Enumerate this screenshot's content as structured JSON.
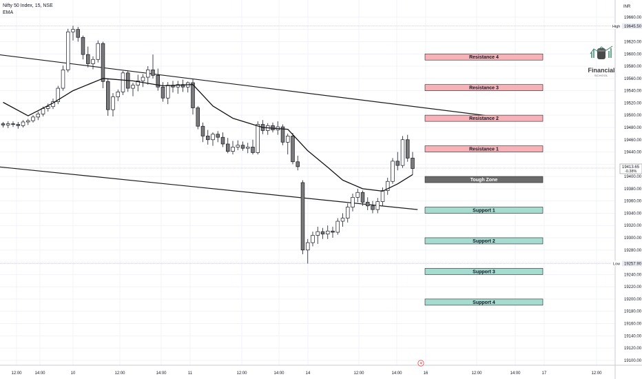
{
  "header": {
    "symbol_line": "Nifty 50 Index, 15, NSE",
    "indicator": "EMA"
  },
  "currency": "INR",
  "brand": {
    "name": "Financial",
    "sub": "SCHOOL"
  },
  "price_axis": {
    "ticks": [
      "19660.00",
      "19620.00",
      "19600.00",
      "19580.00",
      "19560.00",
      "19540.00",
      "19520.00",
      "19500.00",
      "19480.00",
      "19460.00",
      "19440.00",
      "19400.00",
      "19380.00",
      "19360.00",
      "19340.00",
      "19320.00",
      "19300.00",
      "19280.00",
      "19240.00",
      "19220.00",
      "19200.00",
      "19180.00",
      "19160.00",
      "19140.00",
      "19120.00",
      "19100.00"
    ],
    "high_label": "High",
    "high_value": "19645.50",
    "low_label": "Low",
    "low_value": "19257.90",
    "last_value": "19413.65",
    "last_change": "-0.38%"
  },
  "time_axis": {
    "ticks": [
      "12:00",
      "14:00",
      "10",
      "12:00",
      "14:00",
      "11",
      "12:00",
      "14:00",
      "14",
      "12:00",
      "14:00",
      "16",
      "12:00",
      "14:00",
      "17",
      "12:00"
    ]
  },
  "levels": [
    {
      "label": "Resistance 4",
      "price": 19595,
      "kind": "resistance"
    },
    {
      "label": "Resistance 3",
      "price": 19545,
      "kind": "resistance"
    },
    {
      "label": "Resistance 2",
      "price": 19495,
      "kind": "resistance"
    },
    {
      "label": "Resistance 1",
      "price": 19445,
      "kind": "resistance"
    },
    {
      "label": "Tough Zone",
      "price": 19395,
      "kind": "zone"
    },
    {
      "label": "Support 1",
      "price": 19345,
      "kind": "support"
    },
    {
      "label": "Support 2",
      "price": 19295,
      "kind": "support"
    },
    {
      "label": "Support 3",
      "price": 19245,
      "kind": "support"
    },
    {
      "label": "Support 4",
      "price": 19195,
      "kind": "support"
    }
  ],
  "colors": {
    "resistance_fill": "#f7b2b8",
    "support_fill": "#a6dcd0",
    "zone_fill": "#6b6b6b",
    "candle_up": "#ffffff",
    "candle_down": "#7a7a7a",
    "outline": "#131722"
  },
  "chart_data": {
    "type": "candlestick",
    "title": "Nifty 50 Index, 15, NSE",
    "ylim": [
      19092,
      19688
    ],
    "ohlc": [
      [
        19486,
        19489,
        19480,
        19484
      ],
      [
        19484,
        19490,
        19479,
        19486
      ],
      [
        19486,
        19490,
        19481,
        19485
      ],
      [
        19485,
        19489,
        19478,
        19483
      ],
      [
        19483,
        19492,
        19480,
        19489
      ],
      [
        19489,
        19494,
        19484,
        19491
      ],
      [
        19491,
        19500,
        19488,
        19497
      ],
      [
        19497,
        19506,
        19492,
        19502
      ],
      [
        19502,
        19514,
        19498,
        19511
      ],
      [
        19511,
        19519,
        19506,
        19514
      ],
      [
        19514,
        19527,
        19510,
        19522
      ],
      [
        19522,
        19548,
        19518,
        19544
      ],
      [
        19544,
        19581,
        19540,
        19574
      ],
      [
        19574,
        19641,
        19570,
        19636
      ],
      [
        19636,
        19646,
        19622,
        19640
      ],
      [
        19640,
        19644,
        19620,
        19627
      ],
      [
        19627,
        19630,
        19591,
        19599
      ],
      [
        19599,
        19612,
        19578,
        19584
      ],
      [
        19584,
        19596,
        19575,
        19591
      ],
      [
        19591,
        19622,
        19586,
        19617
      ],
      [
        19617,
        19620,
        19544,
        19555
      ],
      [
        19555,
        19560,
        19499,
        19509
      ],
      [
        19509,
        19536,
        19498,
        19530
      ],
      [
        19530,
        19542,
        19523,
        19538
      ],
      [
        19538,
        19572,
        19533,
        19569
      ],
      [
        19569,
        19573,
        19538,
        19544
      ],
      [
        19544,
        19553,
        19531,
        19549
      ],
      [
        19549,
        19566,
        19539,
        19556
      ],
      [
        19556,
        19567,
        19546,
        19562
      ],
      [
        19562,
        19580,
        19550,
        19574
      ],
      [
        19574,
        19599,
        19560,
        19565
      ],
      [
        19565,
        19576,
        19540,
        19546
      ],
      [
        19546,
        19554,
        19522,
        19528
      ],
      [
        19528,
        19554,
        19518,
        19549
      ],
      [
        19549,
        19556,
        19537,
        19546
      ],
      [
        19546,
        19556,
        19535,
        19550
      ],
      [
        19550,
        19558,
        19538,
        19546
      ],
      [
        19546,
        19555,
        19537,
        19553
      ],
      [
        19553,
        19559,
        19501,
        19512
      ],
      [
        19512,
        19515,
        19477,
        19482
      ],
      [
        19482,
        19488,
        19456,
        19466
      ],
      [
        19466,
        19476,
        19452,
        19460
      ],
      [
        19460,
        19472,
        19450,
        19469
      ],
      [
        19469,
        19474,
        19456,
        19464
      ],
      [
        19464,
        19472,
        19448,
        19453
      ],
      [
        19453,
        19463,
        19438,
        19441
      ],
      [
        19441,
        19458,
        19436,
        19448
      ],
      [
        19448,
        19459,
        19443,
        19451
      ],
      [
        19451,
        19457,
        19442,
        19446
      ],
      [
        19446,
        19455,
        19438,
        19448
      ],
      [
        19448,
        19460,
        19436,
        19439
      ],
      [
        19439,
        19490,
        19436,
        19485
      ],
      [
        19485,
        19492,
        19469,
        19475
      ],
      [
        19475,
        19487,
        19468,
        19483
      ],
      [
        19483,
        19488,
        19472,
        19476
      ],
      [
        19476,
        19490,
        19468,
        19481
      ],
      [
        19481,
        19485,
        19451,
        19456
      ],
      [
        19456,
        19470,
        19436,
        19466
      ],
      [
        19466,
        19471,
        19420,
        19424
      ],
      [
        19424,
        19434,
        19410,
        19416
      ],
      [
        19390,
        19394,
        19273,
        19280
      ],
      [
        19280,
        19298,
        19258,
        19292
      ],
      [
        19292,
        19310,
        19286,
        19304
      ],
      [
        19304,
        19318,
        19290,
        19310
      ],
      [
        19310,
        19316,
        19298,
        19306
      ],
      [
        19306,
        19320,
        19298,
        19311
      ],
      [
        19311,
        19318,
        19300,
        19309
      ],
      [
        19309,
        19332,
        19305,
        19327
      ],
      [
        19327,
        19340,
        19318,
        19332
      ],
      [
        19332,
        19356,
        19325,
        19350
      ],
      [
        19350,
        19372,
        19343,
        19366
      ],
      [
        19366,
        19380,
        19358,
        19374
      ],
      [
        19374,
        19377,
        19352,
        19358
      ],
      [
        19358,
        19366,
        19345,
        19352
      ],
      [
        19352,
        19360,
        19340,
        19346
      ],
      [
        19346,
        19365,
        19340,
        19359
      ],
      [
        19359,
        19382,
        19352,
        19377
      ],
      [
        19377,
        19398,
        19370,
        19392
      ],
      [
        19392,
        19430,
        19388,
        19425
      ],
      [
        19425,
        19440,
        19410,
        19418
      ],
      [
        19418,
        19466,
        19414,
        19460
      ],
      [
        19460,
        19468,
        19424,
        19430
      ],
      [
        19430,
        19440,
        19403,
        19413
      ]
    ],
    "ema": [
      [
        0,
        19521
      ],
      [
        5,
        19499
      ],
      [
        10,
        19520
      ],
      [
        14,
        19540
      ],
      [
        20,
        19560
      ],
      [
        26,
        19556
      ],
      [
        32,
        19548
      ],
      [
        38,
        19550
      ],
      [
        42,
        19515
      ],
      [
        46,
        19495
      ],
      [
        52,
        19480
      ],
      [
        57,
        19477
      ],
      [
        61,
        19442
      ],
      [
        65,
        19415
      ],
      [
        68,
        19394
      ],
      [
        72,
        19380
      ],
      [
        76,
        19376
      ],
      [
        79,
        19388
      ],
      [
        82,
        19403
      ]
    ],
    "trendlines": [
      {
        "from": [
          -6,
          19604
        ],
        "to": [
          102,
          19494
        ]
      },
      {
        "from": [
          -6,
          19420
        ],
        "to": [
          83,
          19346
        ]
      }
    ]
  }
}
